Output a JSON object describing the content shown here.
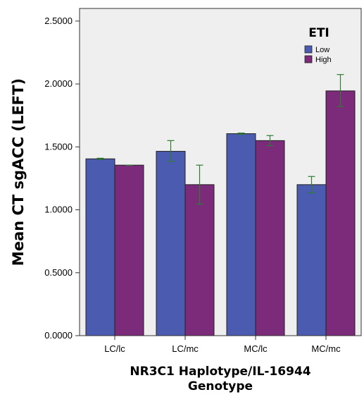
{
  "chart_data": {
    "type": "bar",
    "title": "",
    "xlabel_lines": [
      "NR3C1 Haplotype/IL-16944",
      "Genotype"
    ],
    "ylabel": "Mean CT sgACC (LEFT)",
    "categories": [
      "LC/lc",
      "LC/mc",
      "MC/lc",
      "MC/mc"
    ],
    "ylim": [
      0,
      2.6
    ],
    "yticks": [
      "0.0000",
      "0.5000",
      "1.0000",
      "1.5000",
      "2.0000",
      "2.5000"
    ],
    "ytick_values": [
      0,
      0.5,
      1.0,
      1.5,
      2.0,
      2.5
    ],
    "legend_title": "ETI",
    "legend_position": "top-right",
    "grid": false,
    "error_bar_color": "#2e7d32",
    "series": [
      {
        "name": "Low",
        "color": "#4a5bb0",
        "values": [
          1.405,
          1.465,
          1.605,
          1.2
        ],
        "err_low": [
          1.4,
          1.385,
          1.6,
          1.135
        ],
        "err_high": [
          1.41,
          1.55,
          1.61,
          1.265
        ]
      },
      {
        "name": "High",
        "color": "#7c2a7a",
        "values": [
          1.355,
          1.2,
          1.55,
          1.945
        ],
        "err_low": [
          1.355,
          1.045,
          1.51,
          1.82
        ],
        "err_high": [
          1.355,
          1.355,
          1.59,
          2.075
        ]
      }
    ]
  }
}
